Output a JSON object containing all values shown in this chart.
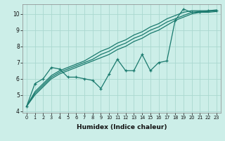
{
  "xlabel": "Humidex (Indice chaleur)",
  "background_color": "#cceee8",
  "line_color": "#1a7a6e",
  "xlim": [
    -0.5,
    23.5
  ],
  "ylim": [
    3.9,
    10.6
  ],
  "yticks": [
    4,
    5,
    6,
    7,
    8,
    9,
    10
  ],
  "xticks": [
    0,
    1,
    2,
    3,
    4,
    5,
    6,
    7,
    8,
    9,
    10,
    11,
    12,
    13,
    14,
    15,
    16,
    17,
    18,
    19,
    20,
    21,
    22,
    23
  ],
  "grid_color": "#aad8d0",
  "jagged": [
    4.3,
    5.7,
    6.0,
    6.7,
    6.6,
    6.1,
    6.1,
    6.0,
    5.9,
    5.4,
    6.3,
    7.2,
    6.5,
    6.5,
    7.5,
    6.5,
    7.0,
    7.1,
    9.6,
    10.3,
    10.1,
    10.1,
    10.2,
    10.2
  ],
  "smooth_lines": [
    [
      4.3,
      5.0,
      5.5,
      6.0,
      6.3,
      6.5,
      6.7,
      6.9,
      7.1,
      7.3,
      7.5,
      7.8,
      8.0,
      8.3,
      8.5,
      8.8,
      9.0,
      9.3,
      9.6,
      9.8,
      10.0,
      10.1,
      10.1,
      10.15
    ],
    [
      4.3,
      5.1,
      5.6,
      6.1,
      6.4,
      6.6,
      6.8,
      7.0,
      7.2,
      7.5,
      7.7,
      8.0,
      8.2,
      8.5,
      8.7,
      9.0,
      9.2,
      9.5,
      9.7,
      9.9,
      10.1,
      10.15,
      10.15,
      10.2
    ],
    [
      4.3,
      5.2,
      5.7,
      6.2,
      6.5,
      6.7,
      6.9,
      7.1,
      7.4,
      7.7,
      7.9,
      8.2,
      8.4,
      8.7,
      8.9,
      9.2,
      9.4,
      9.7,
      9.9,
      10.1,
      10.2,
      10.2,
      10.2,
      10.25
    ]
  ]
}
